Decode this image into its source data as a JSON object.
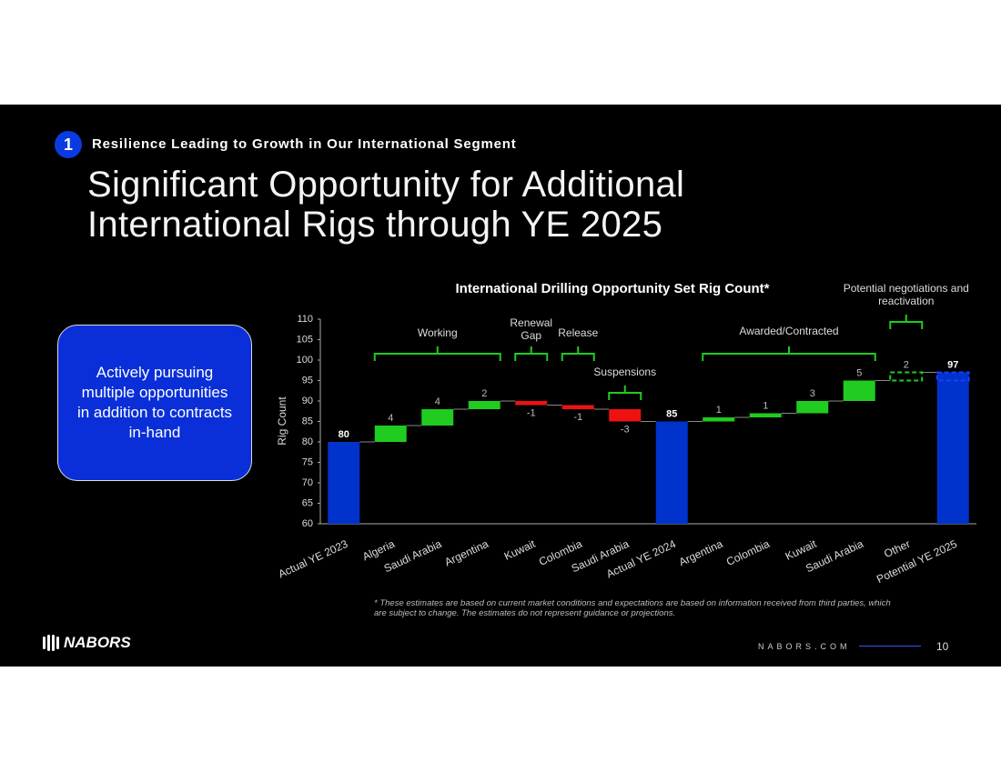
{
  "header": {
    "number": "1",
    "section": "Resilience Leading to Growth in Our International Segment"
  },
  "title_lines": [
    "Significant Opportunity for Additional",
    "International Rigs through YE 2025"
  ],
  "callout": "Actively pursuing multiple opportunities in addition to contracts in-hand",
  "chart_data": {
    "type": "waterfall",
    "title": "International Drilling Opportunity Set Rig Count*",
    "y_label": "Rig Count",
    "categories": [
      "Actual YE 2023",
      "Algeria",
      "Saudi Arabia",
      "Argentina",
      "Kuwait",
      "Colombia",
      "Saudi Arabia",
      "Actual YE 2024",
      "Argentina",
      "Colombia",
      "Kuwait",
      "Saudi Arabia",
      "Other",
      "Potential YE 2025"
    ],
    "values": [
      80,
      4,
      4,
      2,
      -1,
      -1,
      -3,
      85,
      1,
      1,
      3,
      5,
      2,
      97
    ],
    "colors": {
      "total": "#0033cc",
      "increase": "#1fcc1f",
      "decrease": "#ee1111"
    },
    "dashed": [
      12
    ],
    "ylim": [
      60,
      110
    ],
    "yticks": [
      60,
      65,
      70,
      75,
      80,
      85,
      90,
      95,
      100,
      105,
      110
    ],
    "grid": false,
    "annotations": [
      "Working",
      "Renewal Gap",
      "Release",
      "Suspensions",
      "Awarded/Contracted",
      "Potential negotiations and reactivation"
    ]
  },
  "footnote": "* These estimates are based on current market conditions and expectations are based on information received from third parties, which are subject to change. The estimates do not represent guidance or projections.",
  "footer": {
    "logo": "NABORS",
    "website": "NABORS.COM",
    "page": "10"
  }
}
